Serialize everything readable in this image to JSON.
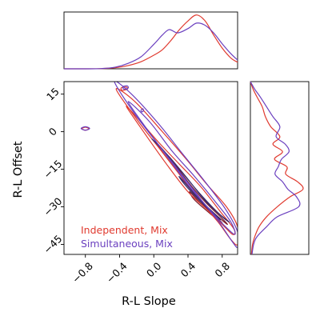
{
  "chart_data": {
    "type": "corner-kde",
    "xlabel": "R-L Slope",
    "ylabel": "R-L Offset",
    "x_ticks": [
      "−0.8",
      "−0.4",
      "0.0",
      "0.4",
      "0.8"
    ],
    "x_tick_values": [
      -0.8,
      -0.4,
      0.0,
      0.4,
      0.8
    ],
    "y_ticks": [
      "15",
      "0",
      "−15",
      "−30",
      "−45"
    ],
    "y_tick_values": [
      15,
      0,
      -15,
      -30,
      -45
    ],
    "xlim": [
      -1.05,
      0.98
    ],
    "ylim": [
      -49,
      20
    ],
    "colors": {
      "independent": "#e03a2f",
      "simultaneous": "#6a3fbf"
    },
    "series": [
      {
        "name": "Independent, Mix",
        "color": "#e03a2f",
        "x_marginal": [
          [
            -1.05,
            0.0
          ],
          [
            -0.8,
            0.0
          ],
          [
            -0.6,
            0.005
          ],
          [
            -0.45,
            0.02
          ],
          [
            -0.3,
            0.06
          ],
          [
            -0.15,
            0.13
          ],
          [
            0.0,
            0.25
          ],
          [
            0.1,
            0.35
          ],
          [
            0.2,
            0.52
          ],
          [
            0.3,
            0.72
          ],
          [
            0.4,
            0.88
          ],
          [
            0.5,
            0.99
          ],
          [
            0.6,
            0.88
          ],
          [
            0.7,
            0.62
          ],
          [
            0.8,
            0.38
          ],
          [
            0.9,
            0.2
          ],
          [
            0.98,
            0.12
          ]
        ],
        "y_marginal": [
          [
            20,
            0.0
          ],
          [
            17,
            0.05
          ],
          [
            14,
            0.12
          ],
          [
            10,
            0.22
          ],
          [
            6,
            0.28
          ],
          [
            2,
            0.38
          ],
          [
            -2,
            0.55
          ],
          [
            -5,
            0.42
          ],
          [
            -8,
            0.6
          ],
          [
            -11,
            0.45
          ],
          [
            -14,
            0.68
          ],
          [
            -17,
            0.66
          ],
          [
            -20,
            0.88
          ],
          [
            -23,
            0.98
          ],
          [
            -26,
            0.74
          ],
          [
            -30,
            0.5
          ],
          [
            -34,
            0.3
          ],
          [
            -38,
            0.16
          ],
          [
            -42,
            0.08
          ],
          [
            -45,
            0.04
          ],
          [
            -49,
            0.02
          ]
        ],
        "contours": [
          {
            "level": "inner",
            "points": [
              [
                0.42,
                -24
              ],
              [
                0.56,
                -29
              ],
              [
                0.7,
                -33
              ],
              [
                0.8,
                -36.5
              ],
              [
                0.74,
                -35
              ],
              [
                0.6,
                -31
              ],
              [
                0.47,
                -27
              ]
            ]
          },
          {
            "level": "middle",
            "points": [
              [
                0.02,
                -4
              ],
              [
                0.2,
                -11
              ],
              [
                0.4,
                -20
              ],
              [
                0.6,
                -28
              ],
              [
                0.78,
                -34
              ],
              [
                0.86,
                -37
              ],
              [
                0.72,
                -33
              ],
              [
                0.5,
                -26
              ],
              [
                0.3,
                -17
              ],
              [
                0.12,
                -9
              ]
            ]
          },
          {
            "level": "outer",
            "points": [
              [
                -0.32,
                10
              ],
              [
                -0.1,
                -1
              ],
              [
                0.15,
                -13
              ],
              [
                0.4,
                -24
              ],
              [
                0.62,
                -31
              ],
              [
                0.8,
                -37
              ],
              [
                0.92,
                -41
              ],
              [
                0.94,
                -39
              ],
              [
                0.78,
                -32
              ],
              [
                0.55,
                -22
              ],
              [
                0.3,
                -13
              ],
              [
                0.05,
                -4
              ],
              [
                -0.18,
                5
              ]
            ]
          },
          {
            "level": "outermost",
            "points": [
              [
                -0.44,
                17
              ],
              [
                -0.2,
                5
              ],
              [
                0.05,
                -6
              ],
              [
                0.3,
                -17
              ],
              [
                0.55,
                -28
              ],
              [
                0.75,
                -36
              ],
              [
                0.9,
                -43
              ],
              [
                0.98,
                -45
              ],
              [
                0.98,
                -38
              ],
              [
                0.85,
                -30
              ],
              [
                0.62,
                -21
              ],
              [
                0.38,
                -11
              ],
              [
                0.1,
                0
              ],
              [
                -0.22,
                12
              ]
            ]
          },
          {
            "level": "islandA",
            "points": [
              [
                -0.38,
                17.5
              ],
              [
                -0.32,
                17.8
              ],
              [
                -0.31,
                17
              ],
              [
                -0.37,
                16.5
              ]
            ]
          },
          {
            "level": "islandB",
            "points": [
              [
                -0.84,
                1.2
              ],
              [
                -0.8,
                1.8
              ],
              [
                -0.76,
                1.2
              ],
              [
                -0.8,
                0.6
              ]
            ]
          }
        ]
      },
      {
        "name": "Simultaneous, Mix",
        "color": "#6a3fbf",
        "x_marginal": [
          [
            -1.05,
            0.0
          ],
          [
            -0.8,
            0.0
          ],
          [
            -0.6,
            0.005
          ],
          [
            -0.45,
            0.03
          ],
          [
            -0.3,
            0.1
          ],
          [
            -0.15,
            0.22
          ],
          [
            0.0,
            0.45
          ],
          [
            0.1,
            0.62
          ],
          [
            0.18,
            0.72
          ],
          [
            0.28,
            0.66
          ],
          [
            0.4,
            0.74
          ],
          [
            0.5,
            0.84
          ],
          [
            0.6,
            0.8
          ],
          [
            0.7,
            0.66
          ],
          [
            0.8,
            0.46
          ],
          [
            0.9,
            0.28
          ],
          [
            0.98,
            0.16
          ]
        ],
        "y_marginal": [
          [
            20,
            0.0
          ],
          [
            17,
            0.08
          ],
          [
            14,
            0.18
          ],
          [
            10,
            0.3
          ],
          [
            6,
            0.42
          ],
          [
            2,
            0.55
          ],
          [
            -2,
            0.48
          ],
          [
            -5,
            0.65
          ],
          [
            -8,
            0.72
          ],
          [
            -11,
            0.58
          ],
          [
            -14,
            0.52
          ],
          [
            -17,
            0.46
          ],
          [
            -20,
            0.6
          ],
          [
            -23,
            0.7
          ],
          [
            -26,
            0.86
          ],
          [
            -30,
            0.9
          ],
          [
            -34,
            0.5
          ],
          [
            -38,
            0.3
          ],
          [
            -42,
            0.12
          ],
          [
            -45,
            0.06
          ],
          [
            -49,
            0.03
          ]
        ],
        "contours": [
          {
            "level": "inner",
            "points": [
              [
                0.3,
                -18
              ],
              [
                0.48,
                -25
              ],
              [
                0.64,
                -30.5
              ],
              [
                0.78,
                -35
              ],
              [
                0.7,
                -33
              ],
              [
                0.52,
                -27
              ],
              [
                0.36,
                -21
              ]
            ]
          },
          {
            "level": "middle",
            "points": [
              [
                -0.02,
                -3
              ],
              [
                0.18,
                -10
              ],
              [
                0.4,
                -19
              ],
              [
                0.6,
                -27.5
              ],
              [
                0.8,
                -34
              ],
              [
                0.88,
                -36
              ],
              [
                0.74,
                -32
              ],
              [
                0.52,
                -24
              ],
              [
                0.3,
                -15
              ],
              [
                0.1,
                -7
              ]
            ]
          },
          {
            "level": "outer",
            "points": [
              [
                -0.3,
                12
              ],
              [
                -0.08,
                1
              ],
              [
                0.18,
                -11
              ],
              [
                0.42,
                -22
              ],
              [
                0.65,
                -31
              ],
              [
                0.84,
                -38
              ],
              [
                0.95,
                -41
              ],
              [
                0.9,
                -36
              ],
              [
                0.72,
                -28
              ],
              [
                0.48,
                -18
              ],
              [
                0.22,
                -8
              ],
              [
                -0.05,
                4
              ]
            ]
          },
          {
            "level": "outermost",
            "points": [
              [
                -0.46,
                20
              ],
              [
                -0.22,
                7
              ],
              [
                0.05,
                -5
              ],
              [
                0.3,
                -16
              ],
              [
                0.55,
                -27
              ],
              [
                0.76,
                -36
              ],
              [
                0.92,
                -44
              ],
              [
                0.98,
                -46
              ],
              [
                0.98,
                -40
              ],
              [
                0.84,
                -31
              ],
              [
                0.6,
                -20
              ],
              [
                0.34,
                -9
              ],
              [
                0.06,
                3
              ],
              [
                -0.26,
                15
              ]
            ]
          },
          {
            "level": "islandA",
            "points": [
              [
                -0.36,
                18
              ],
              [
                -0.31,
                18.3
              ],
              [
                -0.3,
                17.4
              ],
              [
                -0.35,
                17
              ]
            ]
          },
          {
            "level": "islandB",
            "points": [
              [
                -0.85,
                1.3
              ],
              [
                -0.8,
                2.0
              ],
              [
                -0.75,
                1.3
              ],
              [
                -0.8,
                0.6
              ]
            ]
          },
          {
            "level": "islandC",
            "points": [
              [
                -0.15,
                8.5
              ],
              [
                -0.13,
                9.2
              ],
              [
                -0.12,
                8.4
              ],
              [
                -0.14,
                7.9
              ]
            ]
          }
        ]
      }
    ]
  }
}
